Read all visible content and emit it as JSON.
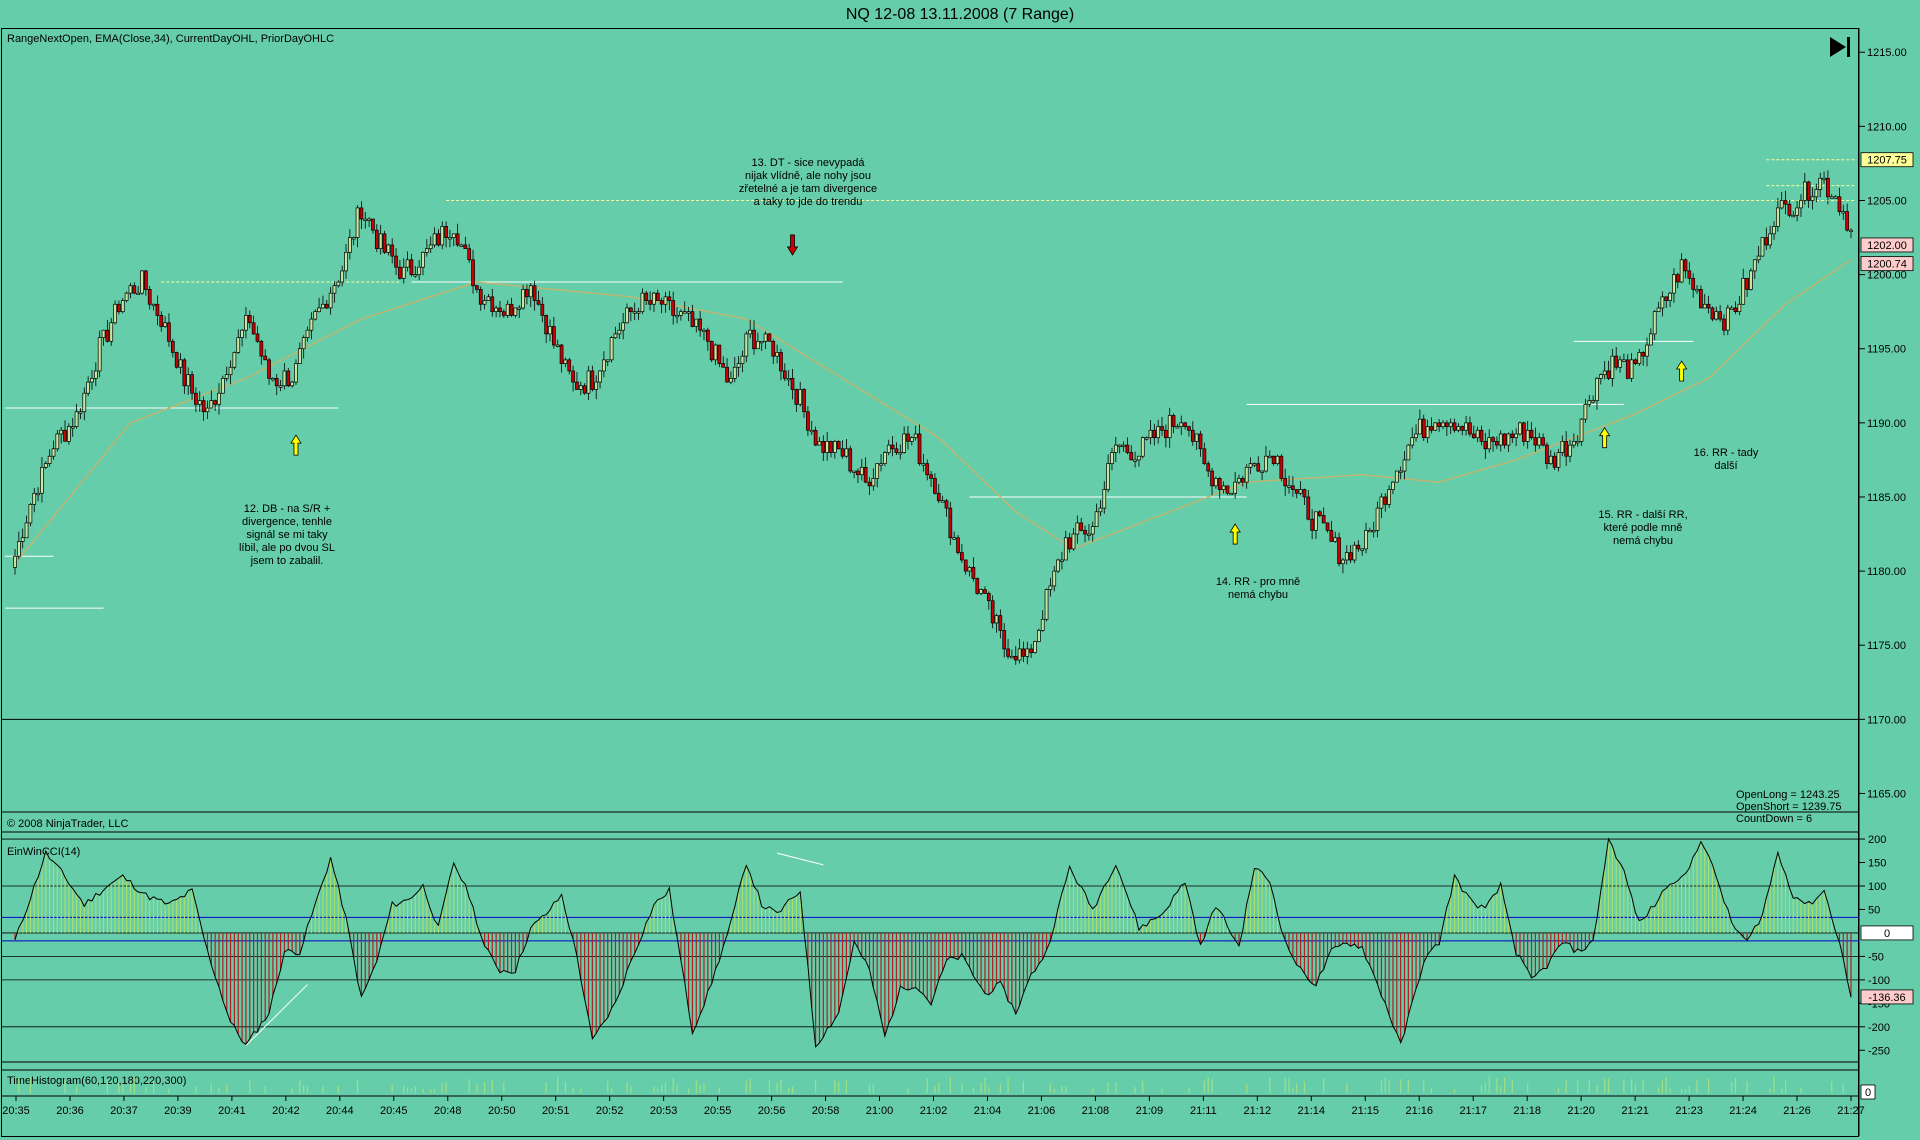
{
  "window_title": "NQ 12-08  13.11.2008 (7 Range)",
  "indicators_label": "RangeNextOpen, EMA(Close,34), CurrentDayOHL, PriorDayOHLC",
  "copyright": "© 2008 NinjaTrader, LLC",
  "cci_label": "EinWinCCI(14)",
  "timehist_label": "TimeHistogram(60,120,180,220,300)",
  "info_box": {
    "line1": "OpenLong = 1243.25",
    "line2": "OpenShort = 1239.75",
    "line3": "CountDown = 6"
  },
  "price_tags": [
    "1207.75",
    "1202.00",
    "1200.74"
  ],
  "cci_tags": [
    "0",
    "-136.36"
  ],
  "timehist_tag": "0",
  "annotations": [
    {
      "id": "12",
      "lines": [
        "12. DB - na S/R +",
        "divergence, tenhle",
        "signál se mi taky",
        "líbil, ale po dvou SL",
        "jsem to zabalil."
      ]
    },
    {
      "id": "13",
      "lines": [
        "13. DT - sice nevypadá",
        "nijak vlídně, ale nohy jsou",
        "zřetelné a je tam divergence",
        "a taky to jde do trendu"
      ]
    },
    {
      "id": "14",
      "lines": [
        "14. RR - pro mně",
        "nemá chybu"
      ]
    },
    {
      "id": "15",
      "lines": [
        "15. RR - další RR,",
        "které podle mně",
        "nemá chybu"
      ]
    },
    {
      "id": "16",
      "lines": [
        "16. RR - tady",
        "další"
      ]
    }
  ],
  "colors": {
    "background": "#66cdaa",
    "up_candle": "#c8e6a0",
    "down_candle": "#cc0000",
    "ema": "#c9b26a",
    "prior_day": "#ffff99",
    "sr_line": "#ffffff",
    "cci_zero_band": "#0000cc",
    "arrow_up": "#ffff00",
    "arrow_down": "#cc0000"
  },
  "chart_data": [
    {
      "type": "candlestick",
      "title": "NQ 12-08  13.11.2008 (7 Range)",
      "y_ticks": [
        "1215.00",
        "1210.00",
        "1205.00",
        "1200.00",
        "1195.00",
        "1190.00",
        "1185.00",
        "1180.00",
        "1175.00",
        "1170.00",
        "1165.00"
      ],
      "ylim": [
        1163.75,
        1216.5
      ],
      "x_ticks": [
        "20:35",
        "20:36",
        "20:37",
        "20:39",
        "20:41",
        "20:42",
        "20:44",
        "20:45",
        "20:48",
        "20:50",
        "20:51",
        "20:52",
        "20:53",
        "20:55",
        "20:56",
        "20:58",
        "21:00",
        "21:02",
        "21:04",
        "21:06",
        "21:08",
        "21:09",
        "21:11",
        "21:12",
        "21:14",
        "21:15",
        "21:16",
        "21:17",
        "21:18",
        "21:20",
        "21:21",
        "21:23",
        "21:24",
        "21:26",
        "21:27"
      ],
      "close_anchors": [
        [
          0,
          1181
        ],
        [
          4,
          1184.5
        ],
        [
          10,
          1188.5
        ],
        [
          16,
          1190.5
        ],
        [
          22,
          1195
        ],
        [
          28,
          1198.5
        ],
        [
          33,
          1199.5
        ],
        [
          38,
          1197
        ],
        [
          44,
          1193
        ],
        [
          50,
          1190.5
        ],
        [
          56,
          1194.5
        ],
        [
          61,
          1197
        ],
        [
          66,
          1193
        ],
        [
          72,
          1193
        ],
        [
          78,
          1197
        ],
        [
          85,
          1200.5
        ],
        [
          90,
          1204.5
        ],
        [
          95,
          1202
        ],
        [
          101,
          1200
        ],
        [
          107,
          1201.5
        ],
        [
          114,
          1203.5
        ],
        [
          120,
          1199
        ],
        [
          128,
          1197.5
        ],
        [
          134,
          1199.5
        ],
        [
          139,
          1196
        ],
        [
          145,
          1192.5
        ],
        [
          150,
          1193
        ],
        [
          156,
          1196
        ],
        [
          162,
          1198
        ],
        [
          168,
          1198
        ],
        [
          174,
          1197
        ],
        [
          180,
          1195.5
        ],
        [
          186,
          1192.5
        ],
        [
          191,
          1196
        ],
        [
          197,
          1195
        ],
        [
          203,
          1192
        ],
        [
          209,
          1188.5
        ],
        [
          215,
          1188
        ],
        [
          221,
          1186
        ],
        [
          227,
          1188.5
        ],
        [
          233,
          1189
        ],
        [
          239,
          1186
        ],
        [
          245,
          1181.5
        ],
        [
          251,
          1178.5
        ],
        [
          257,
          1175
        ],
        [
          263,
          1174
        ],
        [
          268,
          1178
        ],
        [
          273,
          1182
        ],
        [
          280,
          1183
        ],
        [
          286,
          1188.5
        ],
        [
          292,
          1188
        ],
        [
          298,
          1189.5
        ],
        [
          304,
          1190.5
        ],
        [
          309,
          1187
        ],
        [
          315,
          1185.5
        ],
        [
          321,
          1187
        ],
        [
          327,
          1188
        ],
        [
          333,
          1185
        ],
        [
          339,
          1183
        ],
        [
          345,
          1181
        ],
        [
          351,
          1182
        ],
        [
          357,
          1186
        ],
        [
          363,
          1189
        ],
        [
          369,
          1190.5
        ],
        [
          375,
          1190
        ],
        [
          381,
          1188.5
        ],
        [
          387,
          1189
        ],
        [
          393,
          1189.5
        ],
        [
          399,
          1187.5
        ],
        [
          405,
          1189
        ],
        [
          411,
          1193
        ],
        [
          415,
          1194
        ],
        [
          421,
          1193.5
        ],
        [
          427,
          1197.5
        ],
        [
          433,
          1200.5
        ],
        [
          439,
          1198
        ],
        [
          445,
          1197
        ],
        [
          451,
          1200
        ],
        [
          457,
          1204
        ],
        [
          463,
          1205
        ],
        [
          469,
          1206.5
        ],
        [
          474,
          1205
        ],
        [
          477,
          1203
        ]
      ],
      "ema_anchors": [
        [
          0,
          1180.5
        ],
        [
          30,
          1190
        ],
        [
          60,
          1193
        ],
        [
          90,
          1197
        ],
        [
          120,
          1199.5
        ],
        [
          160,
          1198.5
        ],
        [
          190,
          1197
        ],
        [
          215,
          1193
        ],
        [
          240,
          1189
        ],
        [
          260,
          1184
        ],
        [
          275,
          1181.5
        ],
        [
          300,
          1184
        ],
        [
          320,
          1186
        ],
        [
          350,
          1186.5
        ],
        [
          370,
          1186
        ],
        [
          390,
          1187.5
        ],
        [
          420,
          1190.5
        ],
        [
          440,
          1193
        ],
        [
          460,
          1198
        ],
        [
          477,
          1201
        ]
      ],
      "levels": [
        {
          "value": 1191,
          "x_from": 0,
          "x_to": 84
        },
        {
          "value": 1181,
          "x_from": 0,
          "x_to": 10
        },
        {
          "value": 1177.5,
          "x_from": 0,
          "x_to": 23
        },
        {
          "value": 1199.5,
          "x_from": 38,
          "x_to": 100,
          "kind": "prior"
        },
        {
          "value": 1205,
          "x_from": 112,
          "x_to": 478,
          "kind": "prior"
        },
        {
          "value": 1199.5,
          "x_from": 103,
          "x_to": 215
        },
        {
          "value": 1185,
          "x_from": 248,
          "x_to": 320
        },
        {
          "value": 1191.25,
          "x_from": 320,
          "x_to": 418
        },
        {
          "value": 1195.5,
          "x_from": 405,
          "x_to": 436
        },
        {
          "value": 1207.75,
          "x_from": 455,
          "x_to": 478,
          "kind": "prior"
        },
        {
          "value": 1206,
          "x_from": 455,
          "x_to": 478,
          "kind": "prior"
        }
      ],
      "arrows": [
        {
          "i": 73,
          "value": 1188.5,
          "dir": "up"
        },
        {
          "i": 202,
          "value": 1202,
          "dir": "down"
        },
        {
          "i": 317,
          "value": 1182.5,
          "dir": "up"
        },
        {
          "i": 413,
          "value": 1189,
          "dir": "up"
        },
        {
          "i": 433,
          "value": 1193.5,
          "dir": "up"
        }
      ]
    },
    {
      "type": "area",
      "name": "EinWinCCI(14)",
      "y_ticks": [
        "200",
        "150",
        "100",
        "50",
        "-50",
        "-100",
        "-150",
        "-200",
        "-250"
      ],
      "ylim": [
        -275,
        215
      ],
      "band_levels": [
        33,
        -17
      ],
      "ref_levels": [
        200,
        100,
        -50,
        -100,
        -200
      ],
      "cci_anchors": [
        [
          0,
          -17
        ],
        [
          4,
          75
        ],
        [
          8,
          170
        ],
        [
          12,
          130
        ],
        [
          18,
          60
        ],
        [
          24,
          100
        ],
        [
          28,
          120
        ],
        [
          34,
          80
        ],
        [
          40,
          60
        ],
        [
          46,
          90
        ],
        [
          50,
          -40
        ],
        [
          56,
          -190
        ],
        [
          60,
          -240
        ],
        [
          66,
          -170
        ],
        [
          70,
          -40
        ],
        [
          74,
          -40
        ],
        [
          78,
          60
        ],
        [
          82,
          160
        ],
        [
          86,
          30
        ],
        [
          90,
          -140
        ],
        [
          94,
          -60
        ],
        [
          98,
          60
        ],
        [
          102,
          70
        ],
        [
          106,
          100
        ],
        [
          110,
          10
        ],
        [
          114,
          150
        ],
        [
          118,
          80
        ],
        [
          122,
          -30
        ],
        [
          126,
          -80
        ],
        [
          130,
          -80
        ],
        [
          134,
          10
        ],
        [
          138,
          40
        ],
        [
          142,
          80
        ],
        [
          146,
          -50
        ],
        [
          150,
          -230
        ],
        [
          156,
          -150
        ],
        [
          160,
          -60
        ],
        [
          166,
          60
        ],
        [
          170,
          90
        ],
        [
          176,
          -210
        ],
        [
          180,
          -130
        ],
        [
          186,
          20
        ],
        [
          190,
          150
        ],
        [
          194,
          60
        ],
        [
          198,
          40
        ],
        [
          204,
          90
        ],
        [
          208,
          -240
        ],
        [
          214,
          -170
        ],
        [
          218,
          -20
        ],
        [
          222,
          -80
        ],
        [
          226,
          -220
        ],
        [
          230,
          -120
        ],
        [
          234,
          -110
        ],
        [
          238,
          -150
        ],
        [
          242,
          -60
        ],
        [
          246,
          -50
        ],
        [
          252,
          -130
        ],
        [
          256,
          -110
        ],
        [
          260,
          -170
        ],
        [
          264,
          -90
        ],
        [
          268,
          -40
        ],
        [
          274,
          140
        ],
        [
          280,
          50
        ],
        [
          286,
          150
        ],
        [
          292,
          10
        ],
        [
          298,
          40
        ],
        [
          304,
          110
        ],
        [
          308,
          -30
        ],
        [
          312,
          60
        ],
        [
          318,
          -30
        ],
        [
          322,
          140
        ],
        [
          326,
          110
        ],
        [
          330,
          -20
        ],
        [
          334,
          -80
        ],
        [
          338,
          -110
        ],
        [
          342,
          -40
        ],
        [
          346,
          -20
        ],
        [
          350,
          -30
        ],
        [
          356,
          -150
        ],
        [
          360,
          -240
        ],
        [
          366,
          -60
        ],
        [
          370,
          -20
        ],
        [
          374,
          120
        ],
        [
          378,
          70
        ],
        [
          382,
          50
        ],
        [
          386,
          100
        ],
        [
          390,
          -40
        ],
        [
          394,
          -100
        ],
        [
          398,
          -70
        ],
        [
          402,
          -20
        ],
        [
          406,
          -40
        ],
        [
          410,
          -20
        ],
        [
          414,
          200
        ],
        [
          418,
          130
        ],
        [
          422,
          20
        ],
        [
          426,
          60
        ],
        [
          430,
          110
        ],
        [
          434,
          120
        ],
        [
          438,
          200
        ],
        [
          442,
          120
        ],
        [
          446,
          20
        ],
        [
          450,
          -20
        ],
        [
          454,
          40
        ],
        [
          458,
          170
        ],
        [
          462,
          80
        ],
        [
          466,
          60
        ],
        [
          470,
          90
        ],
        [
          474,
          -20
        ],
        [
          477,
          -136.36
        ]
      ]
    },
    {
      "type": "bar",
      "name": "TimeHistogram(60,120,180,220,300)",
      "ylim": [
        0,
        1
      ]
    }
  ]
}
